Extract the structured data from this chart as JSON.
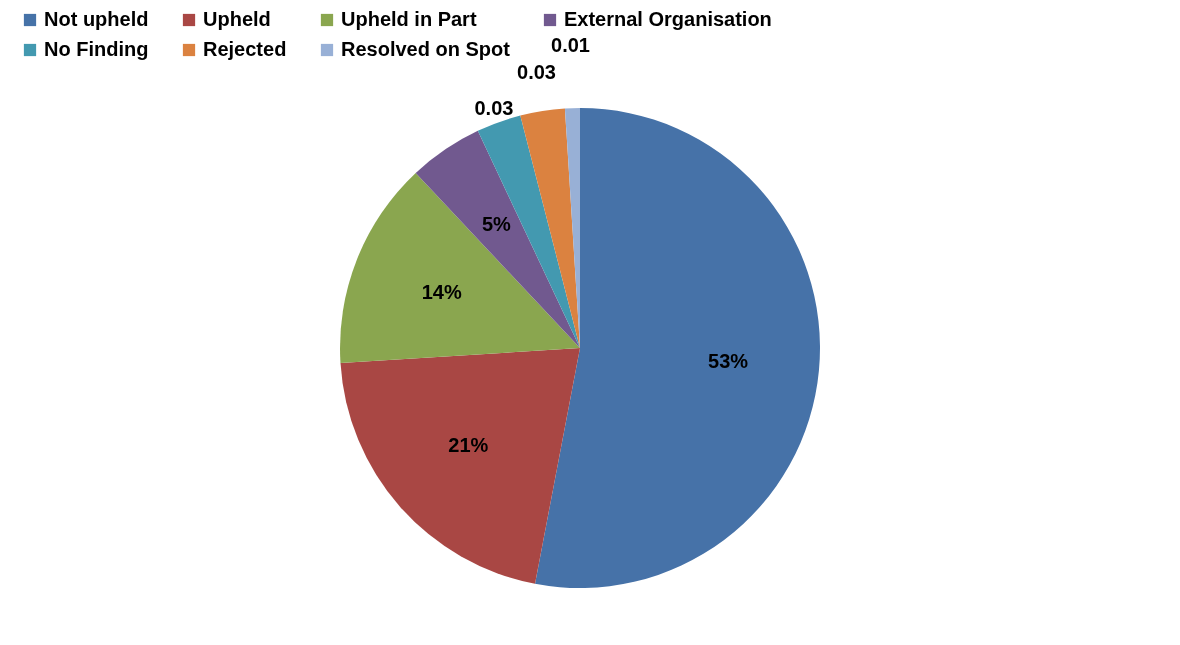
{
  "chart_data": {
    "type": "pie",
    "categories": [
      "Not upheld",
      "Upheld",
      "Upheld in Part",
      "External Organisation",
      "No Finding",
      "Rejected",
      "Resolved on Spot"
    ],
    "values": [
      0.53,
      0.21,
      0.14,
      0.05,
      0.03,
      0.03,
      0.01
    ],
    "colors": [
      "#4672a8",
      "#a94744",
      "#8aa64f",
      "#71598f",
      "#4399b0",
      "#db8240",
      "#98b0d6"
    ],
    "value_labels": [
      "53%",
      "21%",
      "14%",
      "5%",
      "0.03",
      "0.03",
      "0.01"
    ],
    "legend": "top"
  }
}
